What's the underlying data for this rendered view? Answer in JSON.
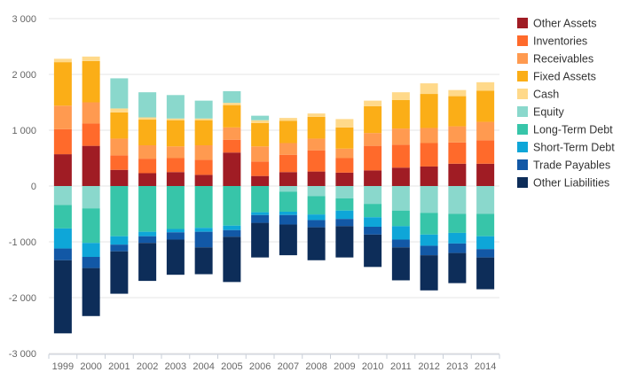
{
  "chart_data": {
    "type": "bar",
    "stacked": true,
    "title": "",
    "xlabel": "",
    "ylabel": "",
    "ylim": [
      -3000,
      3000
    ],
    "yticks": [
      3000,
      2000,
      1000,
      0,
      -1000,
      -2000,
      -3000
    ],
    "ytick_labels": [
      "3 000",
      "2 000",
      "1 000",
      "0",
      "-1 000",
      "-2 000",
      "-3 000"
    ],
    "grid": true,
    "legend_position": "right",
    "categories": [
      "1999",
      "2000",
      "2001",
      "2002",
      "2003",
      "2004",
      "2005",
      "2006",
      "2007",
      "2008",
      "2009",
      "2010",
      "2011",
      "2012",
      "2013",
      "2014"
    ],
    "series": [
      {
        "name": "Other Assets",
        "color": "#a01c24",
        "sign": "positive",
        "values": [
          570,
          720,
          290,
          230,
          250,
          200,
          600,
          180,
          250,
          260,
          240,
          280,
          330,
          350,
          400,
          400
        ]
      },
      {
        "name": "Inventories",
        "color": "#ff6a2b",
        "sign": "positive",
        "values": [
          450,
          400,
          260,
          260,
          250,
          270,
          230,
          260,
          310,
          380,
          260,
          440,
          410,
          420,
          380,
          420
        ]
      },
      {
        "name": "Receivables",
        "color": "#ff9a50",
        "sign": "positive",
        "values": [
          420,
          380,
          300,
          240,
          210,
          260,
          220,
          270,
          210,
          210,
          170,
          230,
          290,
          270,
          290,
          330
        ]
      },
      {
        "name": "Fixed Assets",
        "color": "#fbae17",
        "sign": "positive",
        "values": [
          780,
          740,
          470,
          460,
          470,
          450,
          400,
          420,
          400,
          390,
          380,
          480,
          510,
          610,
          540,
          560
        ]
      },
      {
        "name": "Cash",
        "color": "#ffd98a",
        "sign": "positive",
        "values": [
          60,
          80,
          70,
          40,
          30,
          30,
          40,
          50,
          50,
          60,
          150,
          100,
          140,
          190,
          110,
          150
        ]
      },
      {
        "name": "Equity",
        "color": "#8ad8cc",
        "sign": "positive",
        "values": [
          0,
          0,
          540,
          450,
          420,
          320,
          210,
          80,
          0,
          0,
          0,
          0,
          0,
          0,
          0,
          0
        ]
      },
      {
        "name": "Equity",
        "color": "#8ad8cc",
        "sign": "negative",
        "values": [
          -340,
          -400,
          0,
          0,
          0,
          0,
          0,
          0,
          -100,
          -180,
          -220,
          -320,
          -440,
          -480,
          -500,
          -500
        ]
      },
      {
        "name": "Long-Term Debt",
        "color": "#37c5a9",
        "sign": "negative",
        "values": [
          -420,
          -620,
          -900,
          -820,
          -770,
          -750,
          -710,
          -470,
          -360,
          -330,
          -220,
          -240,
          -280,
          -390,
          -340,
          -400
        ]
      },
      {
        "name": "Short-Term Debt",
        "color": "#0ea6d8",
        "sign": "negative",
        "values": [
          -360,
          -250,
          -150,
          -80,
          -60,
          -70,
          -80,
          -50,
          -60,
          -100,
          -150,
          -170,
          -240,
          -200,
          -190,
          -230
        ]
      },
      {
        "name": "Trade Payables",
        "color": "#1258a6",
        "sign": "negative",
        "values": [
          -210,
          -200,
          -120,
          -120,
          -130,
          -280,
          -120,
          -140,
          -170,
          -130,
          -130,
          -140,
          -140,
          -170,
          -170,
          -150
        ]
      },
      {
        "name": "Other Liabilities",
        "color": "#0d2d59",
        "sign": "negative",
        "values": [
          -1310,
          -860,
          -760,
          -680,
          -630,
          -480,
          -810,
          -620,
          -550,
          -590,
          -560,
          -580,
          -590,
          -630,
          -540,
          -570
        ]
      }
    ],
    "legend": [
      {
        "label": "Other Assets",
        "color": "#a01c24"
      },
      {
        "label": "Inventories",
        "color": "#ff6a2b"
      },
      {
        "label": "Receivables",
        "color": "#ff9a50"
      },
      {
        "label": "Fixed Assets",
        "color": "#fbae17"
      },
      {
        "label": "Cash",
        "color": "#ffd98a"
      },
      {
        "label": "Equity",
        "color": "#8ad8cc"
      },
      {
        "label": "Long-Term Debt",
        "color": "#37c5a9"
      },
      {
        "label": "Short-Term Debt",
        "color": "#0ea6d8"
      },
      {
        "label": "Trade Payables",
        "color": "#1258a6"
      },
      {
        "label": "Other Liabilities",
        "color": "#0d2d59"
      }
    ]
  }
}
